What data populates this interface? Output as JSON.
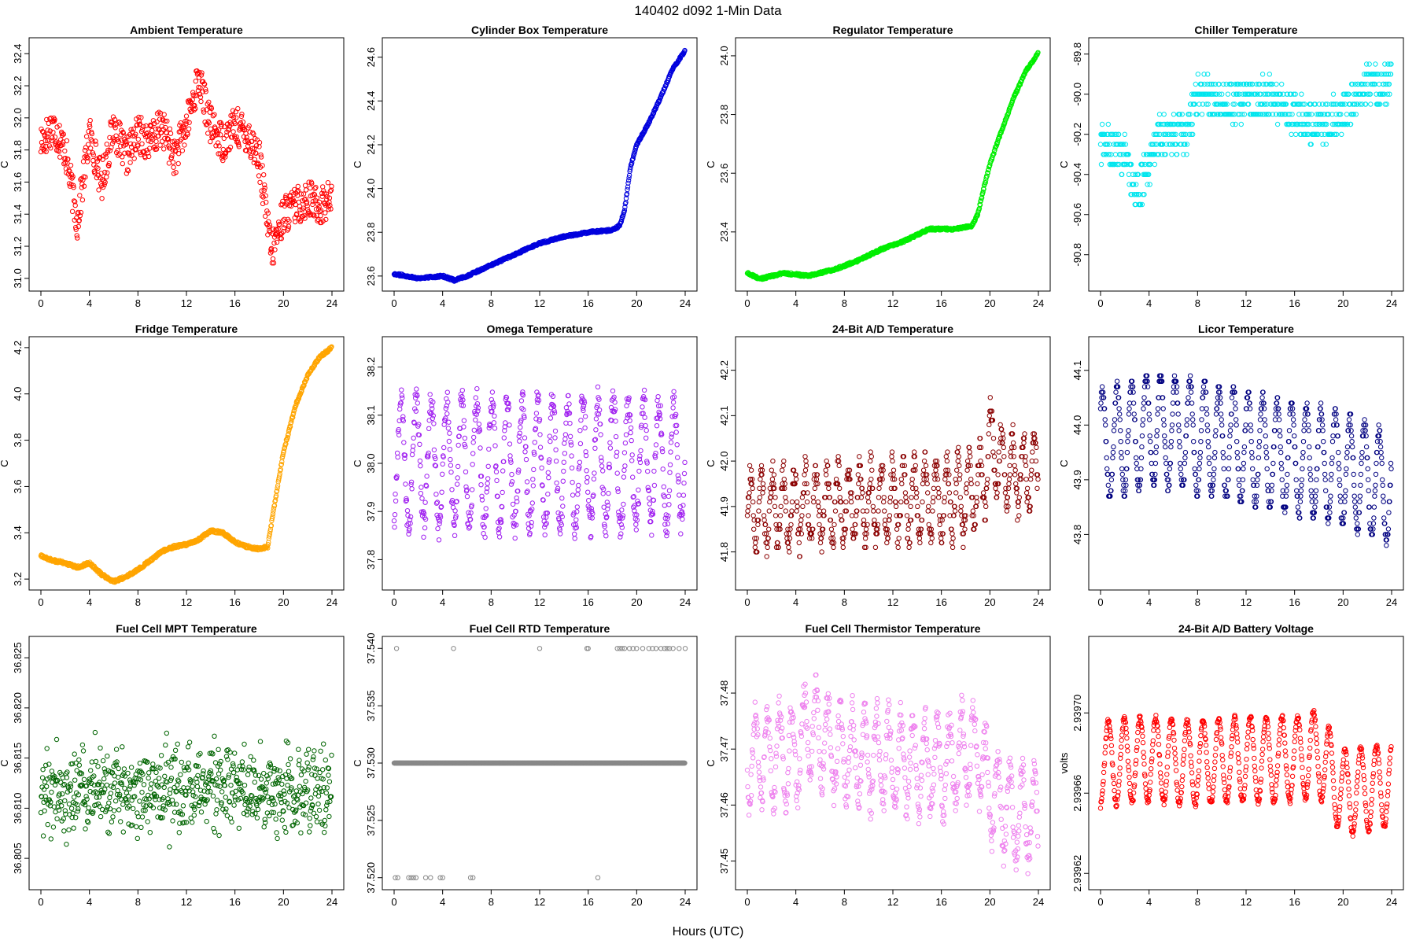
{
  "figure": {
    "title": "140402   d092   1-Min Data",
    "xlabel": "Hours (UTC)"
  },
  "chart_data": [
    {
      "type": "scatter",
      "title": "Ambient Temperature",
      "ylabel": "C",
      "color": "#ff0000",
      "xlim": [
        0,
        24
      ],
      "ylim": [
        30.96,
        32.46
      ],
      "xticks": [
        "0",
        "4",
        "8",
        "12",
        "16",
        "20",
        "24"
      ],
      "yticks": [
        "31.0",
        "31.2",
        "31.4",
        "31.6",
        "31.8",
        "32.0",
        "32.2",
        "32.4"
      ],
      "yticks_values": [
        31.0,
        31.2,
        31.4,
        31.6,
        31.8,
        32.0,
        32.2,
        32.4
      ],
      "series": {
        "x": [
          0,
          1,
          2,
          3,
          4,
          5,
          6,
          7,
          8,
          9,
          10,
          11,
          12,
          13,
          14,
          15,
          16,
          17,
          18,
          19,
          20,
          21,
          22,
          23,
          24
        ],
        "y": [
          31.85,
          31.95,
          31.8,
          31.35,
          31.9,
          31.6,
          31.95,
          31.75,
          31.9,
          31.85,
          31.95,
          31.75,
          31.95,
          32.25,
          31.95,
          31.85,
          31.95,
          31.9,
          31.75,
          31.15,
          31.4,
          31.45,
          31.5,
          31.45,
          31.5
        ],
        "noise": 0.12
      }
    },
    {
      "type": "scatter",
      "title": "Cylinder Box Temperature",
      "ylabel": "C",
      "color": "#0000dd",
      "xlim": [
        0,
        24
      ],
      "ylim": [
        23.56,
        24.66
      ],
      "xticks": [
        "0",
        "4",
        "8",
        "12",
        "16",
        "20",
        "24"
      ],
      "yticks": [
        "23.6",
        "23.8",
        "24.0",
        "24.2",
        "24.4",
        "24.6"
      ],
      "yticks_values": [
        23.6,
        23.8,
        24.0,
        24.2,
        24.4,
        24.6
      ],
      "series": {
        "x": [
          0,
          2,
          4,
          5,
          6,
          8,
          10,
          12,
          14,
          16,
          18,
          18.6,
          19,
          19.5,
          20,
          21,
          22,
          23,
          24
        ],
        "y": [
          23.61,
          23.59,
          23.6,
          23.58,
          23.6,
          23.65,
          23.7,
          23.75,
          23.78,
          23.8,
          23.81,
          23.83,
          23.9,
          24.1,
          24.2,
          24.3,
          24.42,
          24.55,
          24.63
        ],
        "noise": 0.005
      }
    },
    {
      "type": "scatter",
      "title": "Regulator Temperature",
      "ylabel": "C",
      "color": "#00ee00",
      "xlim": [
        0,
        24
      ],
      "ylim": [
        23.22,
        24.04
      ],
      "xticks": [
        "0",
        "4",
        "8",
        "12",
        "16",
        "20",
        "24"
      ],
      "yticks": [
        "23.4",
        "23.6",
        "23.8",
        "24.0"
      ],
      "yticks_values": [
        23.4,
        23.6,
        23.8,
        24.0
      ],
      "series": {
        "x": [
          0,
          1,
          3,
          5,
          7,
          9,
          11,
          13,
          15,
          17,
          18.5,
          19,
          19.5,
          20,
          21,
          22,
          23,
          24
        ],
        "y": [
          23.26,
          23.24,
          23.26,
          23.25,
          23.27,
          23.3,
          23.34,
          23.37,
          23.41,
          23.41,
          23.42,
          23.46,
          23.55,
          23.63,
          23.75,
          23.86,
          23.95,
          24.01
        ],
        "noise": 0.004
      }
    },
    {
      "type": "scatter",
      "title": "Chiller Temperature",
      "ylabel": "C",
      "color": "#00e5ee",
      "xlim": [
        0,
        24
      ],
      "ylim": [
        -90.95,
        -89.75
      ],
      "xticks": [
        "0",
        "4",
        "8",
        "12",
        "16",
        "20",
        "24"
      ],
      "yticks": [
        "-90.8",
        "-90.6",
        "-90.4",
        "-90.2",
        "-90.0",
        "-89.8"
      ],
      "yticks_values": [
        -90.8,
        -90.6,
        -90.4,
        -90.2,
        -90.0,
        -89.8
      ],
      "series": {
        "x": [
          0,
          2,
          3,
          5,
          7,
          8,
          12,
          14,
          16,
          18,
          20,
          22,
          24
        ],
        "y": [
          -90.25,
          -90.3,
          -90.5,
          -90.2,
          -90.2,
          -90.0,
          -90.05,
          -90.0,
          -90.1,
          -90.15,
          -90.1,
          -89.95,
          -89.95
        ],
        "step": 0.05,
        "noise": 0.1
      }
    },
    {
      "type": "scatter",
      "title": "Fridge Temperature",
      "ylabel": "C",
      "color": "#ffa500",
      "xlim": [
        0,
        24
      ],
      "ylim": [
        3.18,
        4.22
      ],
      "xticks": [
        "0",
        "4",
        "8",
        "12",
        "16",
        "20",
        "24"
      ],
      "yticks": [
        "3.2",
        "3.4",
        "3.6",
        "3.8",
        "4.0",
        "4.2"
      ],
      "yticks_values": [
        3.2,
        3.4,
        3.6,
        3.8,
        4.0,
        4.2
      ],
      "series": {
        "x": [
          0,
          1,
          2,
          3,
          4,
          5,
          6,
          7,
          8,
          9,
          10,
          11,
          12,
          13,
          14,
          15,
          16,
          17,
          18,
          18.7,
          19.2,
          20,
          21,
          22,
          23,
          24
        ],
        "y": [
          3.3,
          3.28,
          3.27,
          3.25,
          3.27,
          3.22,
          3.19,
          3.21,
          3.24,
          3.28,
          3.32,
          3.34,
          3.35,
          3.37,
          3.41,
          3.4,
          3.36,
          3.34,
          3.33,
          3.34,
          3.5,
          3.75,
          3.95,
          4.08,
          4.16,
          4.2
        ],
        "noise": 0.006
      }
    },
    {
      "type": "scatter",
      "title": "Omega Temperature",
      "ylabel": "C",
      "color": "#a020f0",
      "xlim": [
        0,
        24
      ],
      "ylim": [
        37.75,
        38.25
      ],
      "xticks": [
        "0",
        "4",
        "8",
        "12",
        "16",
        "20",
        "24"
      ],
      "yticks": [
        "37.8",
        "37.9",
        "38.0",
        "38.1",
        "38.2"
      ],
      "yticks_values": [
        37.8,
        37.9,
        38.0,
        38.1,
        38.2
      ],
      "series": {
        "x": [
          0,
          6,
          12,
          18,
          24
        ],
        "y": [
          38.0,
          38.0,
          38.0,
          38.0,
          38.0
        ],
        "amp": 0.13,
        "period": 1.25,
        "noise": 0.03
      }
    },
    {
      "type": "scatter",
      "title": "24-Bit A/D Temperature",
      "ylabel": "C",
      "color": "#8b0000",
      "xlim": [
        0,
        24
      ],
      "ylim": [
        41.73,
        42.26
      ],
      "xticks": [
        "0",
        "4",
        "8",
        "12",
        "16",
        "20",
        "24"
      ],
      "yticks": [
        "41.8",
        "41.9",
        "42.0",
        "42.1",
        "42.2"
      ],
      "yticks_values": [
        41.8,
        41.9,
        42.0,
        42.1,
        42.2
      ],
      "series": {
        "x": [
          0,
          6,
          12,
          18,
          19.5,
          20,
          21,
          24
        ],
        "y": [
          41.89,
          41.9,
          41.91,
          41.92,
          41.95,
          42.05,
          41.98,
          41.97
        ],
        "amp": 0.08,
        "period": 0.9,
        "noise": 0.03,
        "step": 0.01
      }
    },
    {
      "type": "scatter",
      "title": "Licor Temperature",
      "ylabel": "C",
      "color": "#000080",
      "xlim": [
        0,
        24
      ],
      "ylim": [
        43.71,
        44.15
      ],
      "xticks": [
        "0",
        "4",
        "8",
        "12",
        "16",
        "20",
        "24"
      ],
      "yticks": [
        "43.8",
        "43.9",
        "44.0",
        "44.1"
      ],
      "yticks_values": [
        43.8,
        43.9,
        44.0,
        44.1
      ],
      "series": {
        "x": [
          0,
          4,
          8,
          12,
          16,
          20,
          24
        ],
        "y": [
          43.96,
          43.99,
          43.98,
          43.96,
          43.94,
          43.92,
          43.88
        ],
        "amp": 0.1,
        "period": 1.2,
        "noise": 0.01,
        "step": 0.01
      }
    },
    {
      "type": "scatter",
      "title": "Fuel Cell MPT Temperature",
      "ylabel": "C",
      "color": "#006400",
      "xlim": [
        0,
        24
      ],
      "ylim": [
        36.8025,
        36.8265
      ],
      "xticks": [
        "0",
        "4",
        "8",
        "12",
        "16",
        "20",
        "24"
      ],
      "yticks": [
        "36.805",
        "36.810",
        "36.815",
        "36.820",
        "36.825"
      ],
      "yticks_values": [
        36.805,
        36.81,
        36.815,
        36.82,
        36.825
      ],
      "series": {
        "x": [
          0,
          12,
          24
        ],
        "y": [
          36.8118,
          36.8118,
          36.8118
        ],
        "noise": 0.0033,
        "gauss": true
      }
    },
    {
      "type": "scatter",
      "title": "Fuel Cell RTD Temperature",
      "ylabel": "C",
      "color": "#888888",
      "xlim": [
        0,
        24
      ],
      "ylim": [
        37.5195,
        37.5405
      ],
      "xticks": [
        "0",
        "4",
        "8",
        "12",
        "16",
        "20",
        "24"
      ],
      "yticks": [
        "37.520",
        "37.525",
        "37.530",
        "37.535",
        "37.540"
      ],
      "yticks_values": [
        37.52,
        37.525,
        37.53,
        37.535,
        37.54
      ],
      "series": {
        "x": [
          0,
          24
        ],
        "y": [
          37.53,
          37.53
        ],
        "noise": 0,
        "outliers_hi": [
          0.2,
          4.9,
          12,
          15.9,
          16,
          18.4,
          18.6,
          18.8,
          19,
          19.4,
          19.7,
          20,
          20.5,
          21,
          21.3,
          21.6,
          22,
          22.3,
          22.5,
          22.7,
          23,
          23.5,
          24
        ],
        "outliers_lo": [
          0.1,
          0.3,
          1.2,
          1.4,
          1.6,
          1.8,
          2.6,
          3.0,
          3.8,
          4.0,
          6.3,
          6.5,
          16.8
        ],
        "outlier_hi_value": 37.54,
        "outlier_lo_value": 37.52
      }
    },
    {
      "type": "scatter",
      "title": "Fuel Cell Thermistor Temperature",
      "ylabel": "C",
      "color": "#ee82ee",
      "xlim": [
        0,
        24
      ],
      "ylim": [
        37.446,
        37.489
      ],
      "xticks": [
        "0",
        "4",
        "8",
        "12",
        "16",
        "20",
        "24"
      ],
      "yticks": [
        "37.45",
        "37.46",
        "37.47",
        "37.48"
      ],
      "yticks_values": [
        37.45,
        37.46,
        37.47,
        37.48
      ],
      "series": {
        "x": [
          0,
          4,
          5,
          8,
          12,
          16,
          19,
          20,
          22,
          24
        ],
        "y": [
          37.468,
          37.469,
          37.474,
          37.469,
          37.468,
          37.467,
          37.47,
          37.462,
          37.458,
          37.458
        ],
        "amp": 0.008,
        "period": 1.0,
        "noise": 0.003
      }
    },
    {
      "type": "scatter",
      "title": "24-Bit A/D Battery Voltage",
      "ylabel": "volts",
      "color": "#ff0000",
      "xlim": [
        0,
        24
      ],
      "ylim": [
        2.939615,
        2.939735
      ],
      "xticks": [
        "0",
        "4",
        "8",
        "12",
        "16",
        "20",
        "24"
      ],
      "yticks": [
        "2.93962",
        "2.93966",
        "2.93970"
      ],
      "yticks_values": [
        2.93962,
        2.93966,
        2.9397
      ],
      "series": {
        "x": [
          0,
          4,
          8,
          12,
          16,
          18,
          20,
          22,
          24
        ],
        "y": [
          2.939675,
          2.939677,
          2.939675,
          2.939677,
          2.939677,
          2.93968,
          2.93966,
          2.939662,
          2.939665
        ],
        "amp": 2.1e-05,
        "period": 1.3,
        "noise": 1.5e-06
      }
    }
  ]
}
